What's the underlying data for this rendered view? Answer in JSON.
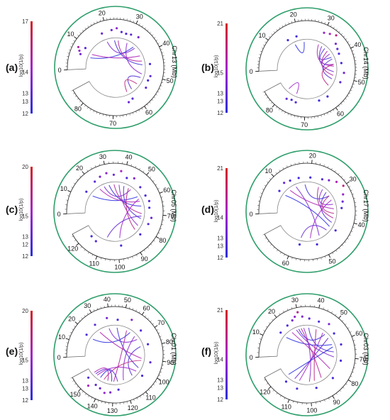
{
  "colors": {
    "ring": "#2e9e6a",
    "low": "#2a2ee0",
    "mid": "#a524c8",
    "high": "#d42222",
    "axis": "#666666"
  },
  "chart_data": [
    {
      "type": "circos",
      "panel": "(a)",
      "chr_label": "Chr13 (Mb)",
      "ticks": [
        "0",
        "10",
        "20",
        "30",
        "40",
        "50",
        "60",
        "70",
        "80"
      ],
      "tick_values": [
        0,
        10,
        20,
        30,
        40,
        50,
        60,
        70,
        80
      ],
      "range": [
        0,
        85
      ],
      "colorbar": {
        "title": "log10(1/p)",
        "labels": [
          "17",
          "14",
          "13",
          "13",
          "12"
        ],
        "min": 12,
        "max": 17
      },
      "points": [
        [
          6,
          13.5
        ],
        [
          7,
          14.2
        ],
        [
          8,
          15
        ],
        [
          9,
          13
        ],
        [
          18,
          13.2
        ],
        [
          22,
          13.5
        ],
        [
          24,
          14
        ],
        [
          26,
          13
        ],
        [
          28,
          12.8
        ],
        [
          30,
          13.1
        ],
        [
          33,
          13.6
        ],
        [
          45,
          12.6
        ],
        [
          50,
          13
        ],
        [
          52,
          12.7
        ],
        [
          55,
          13.2
        ],
        [
          62,
          12.9
        ],
        [
          64,
          13.4
        ]
      ],
      "links": [
        [
          6,
          34
        ],
        [
          8,
          40
        ],
        [
          19,
          35
        ],
        [
          23,
          45
        ],
        [
          25,
          43
        ],
        [
          30,
          50
        ],
        [
          52,
          60
        ],
        [
          56,
          63
        ]
      ]
    },
    {
      "type": "circos",
      "panel": "(b)",
      "chr_label": "Chr14 (Mb)",
      "ticks": [
        "0",
        "10",
        "20",
        "30",
        "40",
        "50",
        "60",
        "70",
        "80"
      ],
      "tick_values": [
        0,
        10,
        20,
        30,
        40,
        50,
        60,
        70,
        80
      ],
      "range": [
        0,
        85
      ],
      "colorbar": {
        "title": "log10(1/p)",
        "labels": [
          "21",
          "15",
          "13",
          "13",
          "12"
        ],
        "min": 12,
        "max": 21
      },
      "points": [
        [
          15,
          13
        ],
        [
          19,
          12.8
        ],
        [
          30,
          16
        ],
        [
          32,
          17
        ],
        [
          34,
          18.5
        ],
        [
          36,
          15
        ],
        [
          38,
          14
        ],
        [
          40,
          13.5
        ],
        [
          44,
          13.2
        ],
        [
          48,
          14.5
        ],
        [
          52,
          13.8
        ],
        [
          60,
          13
        ],
        [
          64,
          12.7
        ],
        [
          74,
          13.5
        ],
        [
          76,
          13.1
        ],
        [
          78,
          14
        ]
      ],
      "links": [
        [
          17,
          22
        ],
        [
          30,
          45
        ],
        [
          32,
          48
        ],
        [
          34,
          40
        ],
        [
          36,
          50
        ],
        [
          38,
          44
        ],
        [
          41,
          52
        ],
        [
          44,
          56
        ],
        [
          75,
          80
        ]
      ]
    },
    {
      "type": "circos",
      "panel": "(c)",
      "chr_label": "Chr05 (Mb)",
      "ticks": [
        "0",
        "10",
        "20",
        "30",
        "40",
        "50",
        "60",
        "70",
        "80",
        "90",
        "100",
        "110",
        "120"
      ],
      "tick_values": [
        0,
        10,
        20,
        30,
        40,
        50,
        60,
        70,
        80,
        90,
        100,
        110,
        120
      ],
      "range": [
        0,
        125
      ],
      "colorbar": {
        "title": "log10(1/p)",
        "labels": [
          "20",
          "15",
          "13",
          "12",
          "12"
        ],
        "min": 12,
        "max": 20
      },
      "points": [
        [
          14,
          13
        ],
        [
          22,
          13.6
        ],
        [
          26,
          14.5
        ],
        [
          30,
          15.2
        ],
        [
          34,
          14
        ],
        [
          38,
          16
        ],
        [
          42,
          13.4
        ],
        [
          46,
          14.8
        ],
        [
          52,
          13.2
        ],
        [
          58,
          12.9
        ],
        [
          62,
          13.6
        ],
        [
          66,
          13
        ],
        [
          72,
          14.2
        ],
        [
          76,
          13.5
        ],
        [
          84,
          12.8
        ],
        [
          98,
          13
        ],
        [
          114,
          13.3
        ],
        [
          118,
          12.7
        ]
      ],
      "links": [
        [
          14,
          56
        ],
        [
          22,
          60
        ],
        [
          26,
          48
        ],
        [
          30,
          64
        ],
        [
          34,
          70
        ],
        [
          38,
          80
        ],
        [
          42,
          74
        ],
        [
          46,
          84
        ],
        [
          58,
          98
        ],
        [
          72,
          108
        ]
      ]
    },
    {
      "type": "circos",
      "panel": "(d)",
      "chr_label": "Chr17 (Mb)",
      "ticks": [
        "0",
        "10",
        "20",
        "30",
        "40",
        "50",
        "60"
      ],
      "tick_values": [
        0,
        10,
        20,
        30,
        40,
        50,
        60
      ],
      "range": [
        0,
        68
      ],
      "colorbar": {
        "title": "log10(1/p)",
        "labels": [
          "21",
          "14",
          "13",
          "13",
          "12"
        ],
        "min": 12,
        "max": 21
      },
      "points": [
        [
          8,
          13
        ],
        [
          11,
          14.2
        ],
        [
          13,
          13.4
        ],
        [
          16,
          13
        ],
        [
          20,
          12.8
        ],
        [
          24,
          13.6
        ],
        [
          26,
          15
        ],
        [
          28,
          17
        ],
        [
          30,
          18.5
        ],
        [
          32,
          16
        ],
        [
          34,
          14.4
        ],
        [
          36,
          13.2
        ],
        [
          44,
          12.9
        ],
        [
          52,
          13
        ],
        [
          58,
          12.7
        ]
      ],
      "links": [
        [
          8,
          44
        ],
        [
          11,
          36
        ],
        [
          14,
          50
        ],
        [
          18,
          30
        ],
        [
          24,
          40
        ],
        [
          26,
          34
        ],
        [
          28,
          42
        ],
        [
          30,
          38
        ],
        [
          32,
          54
        ],
        [
          46,
          58
        ]
      ]
    },
    {
      "type": "circos",
      "panel": "(e)",
      "chr_label": "Chr01 (Mb)",
      "ticks": [
        "0",
        "10",
        "20",
        "30",
        "40",
        "50",
        "60",
        "70",
        "80",
        "90",
        "100",
        "110",
        "120",
        "130",
        "140",
        "150"
      ],
      "tick_values": [
        0,
        10,
        20,
        30,
        40,
        50,
        60,
        70,
        80,
        90,
        100,
        110,
        120,
        130,
        140,
        150
      ],
      "range": [
        0,
        158
      ],
      "colorbar": {
        "title": "log10(1/p)",
        "labels": [
          "20",
          "15",
          "13",
          "13",
          "12"
        ],
        "min": 12,
        "max": 20
      },
      "points": [
        [
          18,
          13
        ],
        [
          28,
          13.6
        ],
        [
          38,
          14.4
        ],
        [
          46,
          13.2
        ],
        [
          56,
          15
        ],
        [
          66,
          13.4
        ],
        [
          78,
          13
        ],
        [
          92,
          13.8
        ],
        [
          104,
          12.9
        ],
        [
          126,
          13.2
        ],
        [
          132,
          14.6
        ],
        [
          136,
          15.4
        ],
        [
          140,
          14
        ],
        [
          144,
          13.5
        ],
        [
          148,
          16
        ],
        [
          152,
          13.2
        ]
      ],
      "links": [
        [
          18,
          60
        ],
        [
          28,
          90
        ],
        [
          38,
          70
        ],
        [
          46,
          100
        ],
        [
          56,
          130
        ],
        [
          66,
          120
        ],
        [
          78,
          110
        ],
        [
          92,
          140
        ],
        [
          104,
          148
        ],
        [
          126,
          150
        ],
        [
          132,
          144
        ],
        [
          136,
          152
        ]
      ]
    },
    {
      "type": "circos",
      "panel": "(f)",
      "chr_label": "Chr03 (Mb)",
      "ticks": [
        "0",
        "10",
        "20",
        "30",
        "40",
        "50",
        "60",
        "70",
        "80",
        "90",
        "100",
        "110",
        "120"
      ],
      "tick_values": [
        0,
        10,
        20,
        30,
        40,
        50,
        60,
        70,
        80,
        90,
        100,
        110,
        120
      ],
      "range": [
        0,
        125
      ],
      "colorbar": {
        "title": "log10(1/p)",
        "labels": [
          "21",
          "14",
          "13",
          "13",
          "12"
        ],
        "min": 12,
        "max": 21
      },
      "points": [
        [
          16,
          13
        ],
        [
          22,
          13.4
        ],
        [
          26,
          14.6
        ],
        [
          28,
          16
        ],
        [
          30,
          18
        ],
        [
          32,
          15.2
        ],
        [
          36,
          14
        ],
        [
          42,
          13.4
        ],
        [
          48,
          14.8
        ],
        [
          54,
          13
        ],
        [
          62,
          13.6
        ],
        [
          72,
          12.9
        ],
        [
          84,
          13.2
        ],
        [
          96,
          13
        ],
        [
          108,
          13.5
        ],
        [
          116,
          12.8
        ]
      ],
      "links": [
        [
          16,
          60
        ],
        [
          22,
          80
        ],
        [
          26,
          70
        ],
        [
          28,
          50
        ],
        [
          30,
          90
        ],
        [
          32,
          100
        ],
        [
          36,
          66
        ],
        [
          42,
          96
        ],
        [
          48,
          108
        ],
        [
          54,
          112
        ],
        [
          62,
          118
        ]
      ]
    }
  ]
}
